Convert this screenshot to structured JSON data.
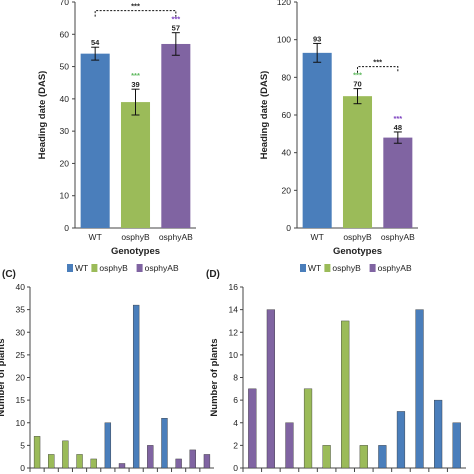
{
  "chart_data": [
    {
      "type": "bar",
      "categories": [
        "WT",
        "osphyB",
        "osphyAB"
      ],
      "values": [
        54,
        39,
        57
      ],
      "errors": [
        2,
        4,
        3.5
      ],
      "value_labels": [
        "54",
        "39",
        "57"
      ],
      "colors": [
        "#4a7ebb",
        "#9bbb59",
        "#8064a2"
      ],
      "xlabel": "Genotypes",
      "ylabel": "Heading date (DAS)",
      "ylim": [
        0,
        70
      ],
      "yticks": [
        0,
        10,
        20,
        30,
        40,
        50,
        60,
        70
      ],
      "star_labels": [
        "",
        "***",
        "***"
      ],
      "bracket": {
        "from": "WT",
        "to": "osphyAB",
        "label": "***"
      }
    },
    {
      "type": "bar",
      "categories": [
        "WT",
        "osphyB",
        "osphyAB"
      ],
      "values": [
        93,
        70,
        48
      ],
      "errors": [
        5,
        4,
        3
      ],
      "value_labels": [
        "93",
        "70",
        "48"
      ],
      "colors": [
        "#4a7ebb",
        "#9bbb59",
        "#8064a2"
      ],
      "xlabel": "Genotypes",
      "ylabel": "Heading date (DAS)",
      "ylim": [
        0,
        120
      ],
      "yticks": [
        0,
        20,
        40,
        60,
        80,
        100,
        120
      ],
      "star_labels": [
        "",
        "***",
        "***"
      ],
      "bracket": {
        "from": "osphyB",
        "to": "osphyAB",
        "label": "***"
      }
    },
    {
      "type": "bar",
      "panel_label": "(C)",
      "legend": [
        "WT",
        "osphyB",
        "osphyAB"
      ],
      "ylabel": "Number of plants",
      "ylim": [
        0,
        40
      ],
      "yticks": [
        0,
        5,
        10,
        15,
        20,
        25,
        30,
        35,
        40
      ],
      "bars": [
        {
          "series": "osphyB",
          "value": 7
        },
        {
          "series": "osphyB",
          "value": 3
        },
        {
          "series": "osphyB",
          "value": 6
        },
        {
          "series": "osphyB",
          "value": 3
        },
        {
          "series": "osphyB",
          "value": 2
        },
        {
          "series": "WT",
          "value": 10
        },
        {
          "series": "osphyAB",
          "value": 1
        },
        {
          "series": "WT",
          "value": 36
        },
        {
          "series": "osphyAB",
          "value": 5
        },
        {
          "series": "WT",
          "value": 11
        },
        {
          "series": "osphyAB",
          "value": 2
        },
        {
          "series": "osphyAB",
          "value": 4
        },
        {
          "series": "osphyAB",
          "value": 3
        }
      ]
    },
    {
      "type": "bar",
      "panel_label": "(D)",
      "legend": [
        "WT",
        "osphyB",
        "osphyAB"
      ],
      "ylabel": "Number of plants",
      "ylim": [
        0,
        16
      ],
      "yticks": [
        0,
        2,
        4,
        6,
        8,
        10,
        12,
        14,
        16
      ],
      "bars": [
        {
          "series": "osphyAB",
          "value": 7
        },
        {
          "series": "osphyAB",
          "value": 14
        },
        {
          "series": "osphyAB",
          "value": 4
        },
        {
          "series": "osphyB",
          "value": 7
        },
        {
          "series": "osphyB",
          "value": 2
        },
        {
          "series": "osphyB",
          "value": 13
        },
        {
          "series": "osphyB",
          "value": 2
        },
        {
          "series": "WT",
          "value": 2
        },
        {
          "series": "WT",
          "value": 5
        },
        {
          "series": "WT",
          "value": 14
        },
        {
          "series": "WT",
          "value": 6
        },
        {
          "series": "WT",
          "value": 4
        }
      ]
    }
  ],
  "series_colors": {
    "WT": "#4a7ebb",
    "osphyB": "#9bbb59",
    "osphyAB": "#8064a2"
  },
  "star_colors": {
    "osphyB": "#5cb85c",
    "osphyAB": "#7a3fbf"
  }
}
